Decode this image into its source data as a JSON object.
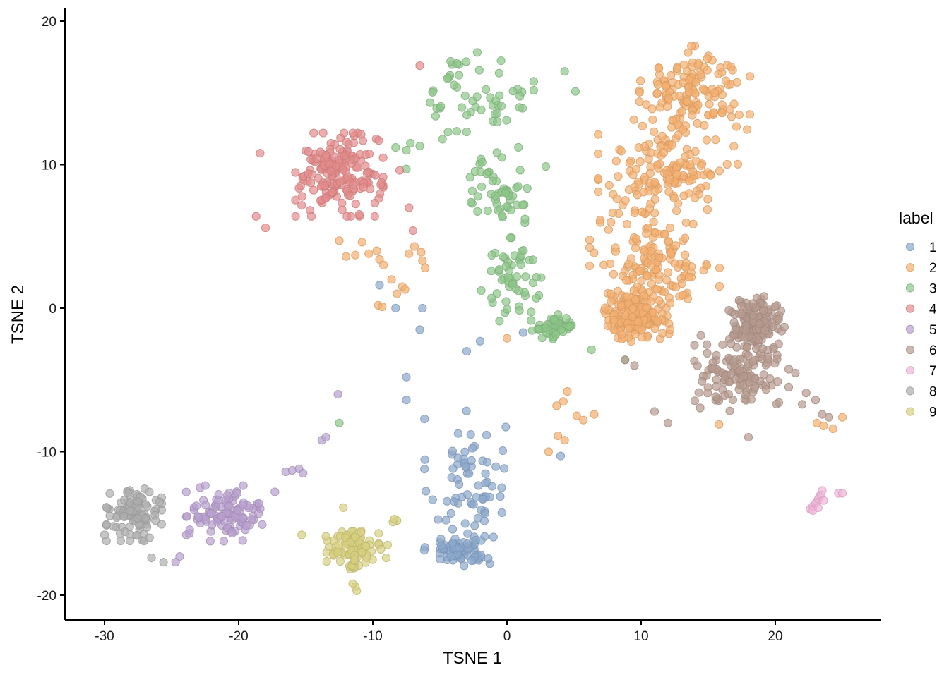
{
  "chart_data": {
    "type": "scatter",
    "xlabel": "TSNE 1",
    "ylabel": "TSNE 2",
    "xlim": [
      -33,
      28
    ],
    "ylim": [
      -21.5,
      21
    ],
    "xticks": [
      -30,
      -20,
      -10,
      0,
      10,
      20
    ],
    "yticks": [
      -20,
      -10,
      0,
      10,
      20
    ],
    "grid": false,
    "legend": {
      "title": "label",
      "placement": "right"
    },
    "point_opacity": 0.7,
    "series": [
      {
        "name": "1",
        "color": "#8CA8CC",
        "n": 140,
        "clusters": [
          {
            "center": [
              -3.0,
              -12.0
            ],
            "spread": [
              2.6,
              4.0
            ]
          },
          {
            "center": [
              -3.5,
              -16.8
            ],
            "spread": [
              2.2,
              1.0
            ]
          }
        ],
        "points": [
          [
            -9.5,
            1.6
          ],
          [
            -8.3,
            0.0
          ],
          [
            -6.5,
            -1.5
          ],
          [
            -6.3,
            0.0
          ],
          [
            -3.0,
            -3.0
          ],
          [
            -2.0,
            -2.3
          ],
          [
            -7.5,
            -4.8
          ],
          [
            -7.5,
            -6.4
          ],
          [
            1.2,
            -1.7
          ],
          [
            4.0,
            -10.3
          ]
        ]
      },
      {
        "name": "2",
        "color": "#F4AF6F",
        "n": 560,
        "clusters": [
          {
            "center": [
              14.0,
              15.0
            ],
            "spread": [
              3.4,
              2.7
            ]
          },
          {
            "center": [
              12.0,
              9.5
            ],
            "spread": [
              4.3,
              3.0
            ]
          },
          {
            "center": [
              11.0,
              3.0
            ],
            "spread": [
              4.0,
              3.0
            ]
          },
          {
            "center": [
              9.5,
              -0.5
            ],
            "spread": [
              2.2,
              1.5
            ]
          }
        ],
        "points": [
          [
            -12.5,
            4.7
          ],
          [
            -10.8,
            4.6
          ],
          [
            -10.3,
            3.8
          ],
          [
            -9.7,
            4.0
          ],
          [
            -9.5,
            3.4
          ],
          [
            -9.2,
            3.0
          ],
          [
            -8.6,
            2.0
          ],
          [
            -8.2,
            1.0
          ],
          [
            -7.8,
            1.5
          ],
          [
            -7.6,
            1.3
          ],
          [
            -7.3,
            3.8
          ],
          [
            -6.9,
            4.3
          ],
          [
            -6.4,
            3.9
          ],
          [
            -6.3,
            3.3
          ],
          [
            -6.1,
            2.8
          ],
          [
            -9.6,
            0.2
          ],
          [
            -9.3,
            0.1
          ],
          [
            -11.3,
            3.7
          ],
          [
            -12.0,
            3.6
          ],
          [
            0.0,
            -2.1
          ],
          [
            4.5,
            -5.8
          ],
          [
            4.2,
            -6.5
          ],
          [
            3.7,
            -6.8
          ],
          [
            5.2,
            -7.5
          ],
          [
            5.7,
            -7.8
          ],
          [
            6.5,
            -7.4
          ],
          [
            3.8,
            -8.9
          ],
          [
            4.3,
            -9.2
          ],
          [
            3.1,
            -10.0
          ],
          [
            15.8,
            -8.1
          ],
          [
            23.1,
            -8.0
          ],
          [
            23.6,
            -8.2
          ],
          [
            24.3,
            -8.4
          ],
          [
            25.0,
            -7.6
          ]
        ]
      },
      {
        "name": "3",
        "color": "#8DC689",
        "n": 210,
        "clusters": [
          {
            "center": [
              -2.0,
              14.8
            ],
            "spread": [
              3.3,
              2.5
            ]
          },
          {
            "center": [
              -0.5,
              8.5
            ],
            "spread": [
              2.8,
              2.4
            ]
          },
          {
            "center": [
              0.5,
              2.0
            ],
            "spread": [
              2.0,
              2.4
            ]
          },
          {
            "center": [
              3.5,
              -1.3
            ],
            "spread": [
              1.5,
              0.7
            ]
          }
        ],
        "points": [
          [
            -8.3,
            11.2
          ],
          [
            -7.5,
            11.0
          ],
          [
            -6.5,
            11.3
          ],
          [
            -7.5,
            9.7
          ],
          [
            -7.2,
            11.5
          ],
          [
            -4.2,
            17.2
          ],
          [
            -12.5,
            -8.0
          ],
          [
            6.3,
            -2.9
          ],
          [
            8.8,
            -3.6
          ],
          [
            4.3,
            16.5
          ],
          [
            5.1,
            15.1
          ]
        ]
      },
      {
        "name": "4",
        "color": "#E48C8C",
        "n": 185,
        "clusters": [
          {
            "center": [
              -12.5,
              9.3
            ],
            "spread": [
              2.7,
              2.4
            ]
          }
        ],
        "points": [
          [
            -6.5,
            16.9
          ],
          [
            -18.0,
            5.6
          ],
          [
            -18.7,
            6.4
          ],
          [
            -18.4,
            10.8
          ],
          [
            -8.0,
            9.6
          ],
          [
            -7.3,
            7.0
          ],
          [
            -7.0,
            5.4
          ]
        ]
      },
      {
        "name": "5",
        "color": "#B9A0CE",
        "n": 110,
        "clusters": [
          {
            "center": [
              -21.0,
              -14.3
            ],
            "spread": [
              2.4,
              1.6
            ]
          }
        ],
        "points": [
          [
            -16.5,
            -11.4
          ],
          [
            -16.0,
            -11.3
          ],
          [
            -15.5,
            -11.2
          ],
          [
            -15.2,
            -11.5
          ],
          [
            -12.6,
            -6.0
          ],
          [
            -13.8,
            -9.2
          ],
          [
            -13.5,
            -9.0
          ],
          [
            -24.4,
            -17.3
          ],
          [
            -24.7,
            -17.7
          ],
          [
            -17.3,
            -12.8
          ]
        ]
      },
      {
        "name": "6",
        "color": "#B79A8E",
        "n": 260,
        "clusters": [
          {
            "center": [
              17.5,
              -4.5
            ],
            "spread": [
              3.3,
              2.2
            ]
          },
          {
            "center": [
              18.5,
              -1.0
            ],
            "spread": [
              1.8,
              1.5
            ]
          }
        ],
        "points": [
          [
            21.0,
            -5.5
          ],
          [
            22.3,
            -5.9
          ],
          [
            22.0,
            -6.7
          ],
          [
            23.0,
            -6.4
          ],
          [
            23.5,
            -7.4
          ],
          [
            24.0,
            -7.6
          ],
          [
            11.0,
            -7.2
          ],
          [
            12.0,
            -8.0
          ],
          [
            18.0,
            -9.0
          ],
          [
            8.8,
            -3.6
          ],
          [
            9.5,
            -4.0
          ]
        ]
      },
      {
        "name": "7",
        "color": "#F1B5D8",
        "n": 0,
        "clusters": [],
        "points": [
          [
            22.6,
            -14.0
          ],
          [
            22.8,
            -13.8
          ],
          [
            23.0,
            -13.6
          ],
          [
            23.1,
            -13.5
          ],
          [
            23.2,
            -13.3
          ],
          [
            23.3,
            -13.1
          ],
          [
            23.4,
            -13.0
          ],
          [
            23.5,
            -12.7
          ],
          [
            23.6,
            -13.4
          ],
          [
            22.8,
            -14.1
          ],
          [
            24.7,
            -12.9
          ],
          [
            25.0,
            -12.9
          ],
          [
            23.2,
            -13.9
          ]
        ]
      },
      {
        "name": "8",
        "color": "#AEAEAE",
        "n": 105,
        "clusters": [
          {
            "center": [
              -27.8,
              -14.4
            ],
            "spread": [
              1.7,
              1.5
            ]
          }
        ],
        "points": [
          [
            -30.0,
            -15.8
          ],
          [
            -26.5,
            -17.4
          ],
          [
            -25.6,
            -17.7
          ],
          [
            -25.9,
            -13.5
          ],
          [
            -26.2,
            -14.8
          ]
        ]
      },
      {
        "name": "9",
        "color": "#D7D07F",
        "n": 85,
        "clusters": [
          {
            "center": [
              -11.5,
              -16.7
            ],
            "spread": [
              1.6,
              1.3
            ]
          }
        ],
        "points": [
          [
            -15.3,
            -15.8
          ],
          [
            -13.4,
            -16.2
          ],
          [
            -13.5,
            -15.9
          ],
          [
            -12.2,
            -13.9
          ],
          [
            -11.3,
            -19.4
          ],
          [
            -11.2,
            -19.7
          ],
          [
            -11.5,
            -19.2
          ],
          [
            -8.2,
            -14.8
          ],
          [
            -8.5,
            -14.9
          ],
          [
            -8.4,
            -14.7
          ],
          [
            -8.9,
            -16.5
          ],
          [
            -9.0,
            -17.4
          ],
          [
            -9.4,
            -16.8
          ]
        ]
      }
    ]
  }
}
